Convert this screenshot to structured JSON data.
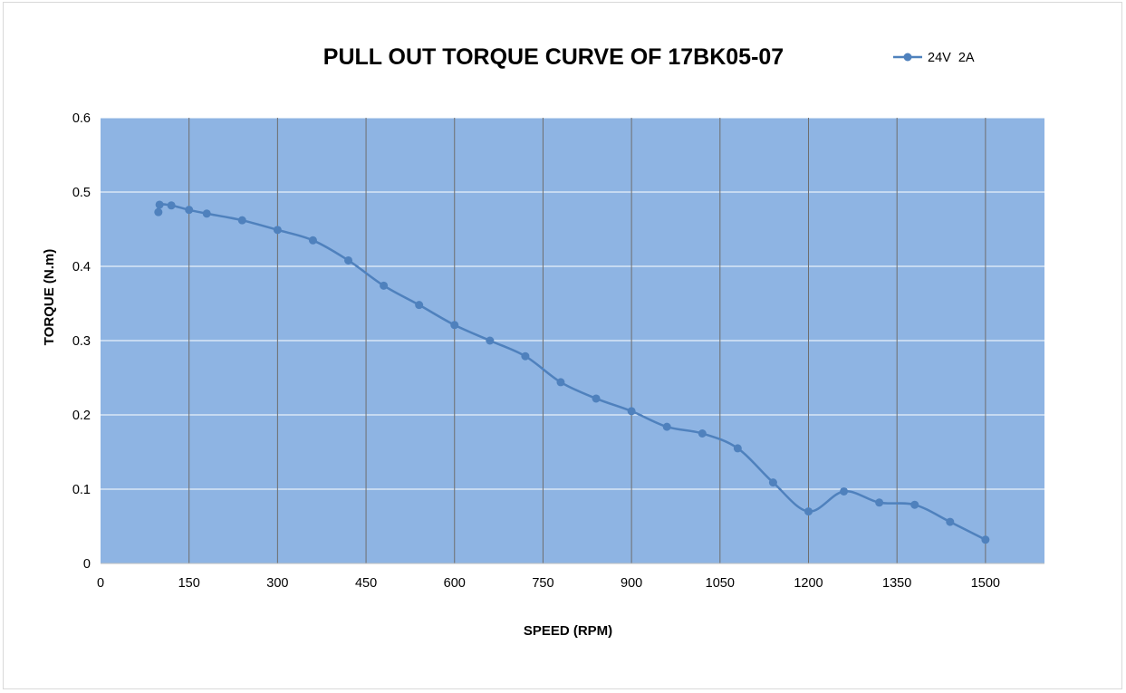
{
  "chart_data": {
    "type": "line",
    "title": "PULL OUT TORQUE CURVE OF 17BK05-07",
    "xlabel": "SPEED (RPM)",
    "ylabel": "TORQUE (N.m)",
    "xlim": [
      0,
      1600
    ],
    "ylim": [
      0,
      0.6
    ],
    "x_ticks": [
      0,
      150,
      300,
      450,
      600,
      750,
      900,
      1050,
      1200,
      1350,
      1500
    ],
    "y_ticks": [
      0,
      0.1,
      0.2,
      0.3,
      0.4,
      0.5,
      0.6
    ],
    "x_tick_labels": [
      "0",
      "150",
      "300",
      "450",
      "600",
      "750",
      "900",
      "1050",
      "1200",
      "1350",
      "1500"
    ],
    "y_tick_labels": [
      "0",
      "0.1",
      "0.2",
      "0.3",
      "0.4",
      "0.5",
      "0.6"
    ],
    "grid": {
      "vertical": true,
      "horizontal": true
    },
    "legend_position": "top-right",
    "plot_background": "#8eb4e3",
    "series_color": "#4f81bd",
    "series": [
      {
        "name": "24V  2A",
        "x": [
          98,
          100,
          120,
          150,
          180,
          240,
          300,
          360,
          420,
          480,
          540,
          600,
          660,
          720,
          780,
          840,
          900,
          960,
          1020,
          1080,
          1140,
          1200,
          1260,
          1320,
          1380,
          1440,
          1500
        ],
        "y": [
          0.473,
          0.483,
          0.482,
          0.476,
          0.471,
          0.462,
          0.449,
          0.435,
          0.408,
          0.374,
          0.348,
          0.321,
          0.3,
          0.279,
          0.244,
          0.222,
          0.205,
          0.184,
          0.175,
          0.155,
          0.109,
          0.07,
          0.097,
          0.082,
          0.079,
          0.056,
          0.032
        ]
      }
    ]
  }
}
